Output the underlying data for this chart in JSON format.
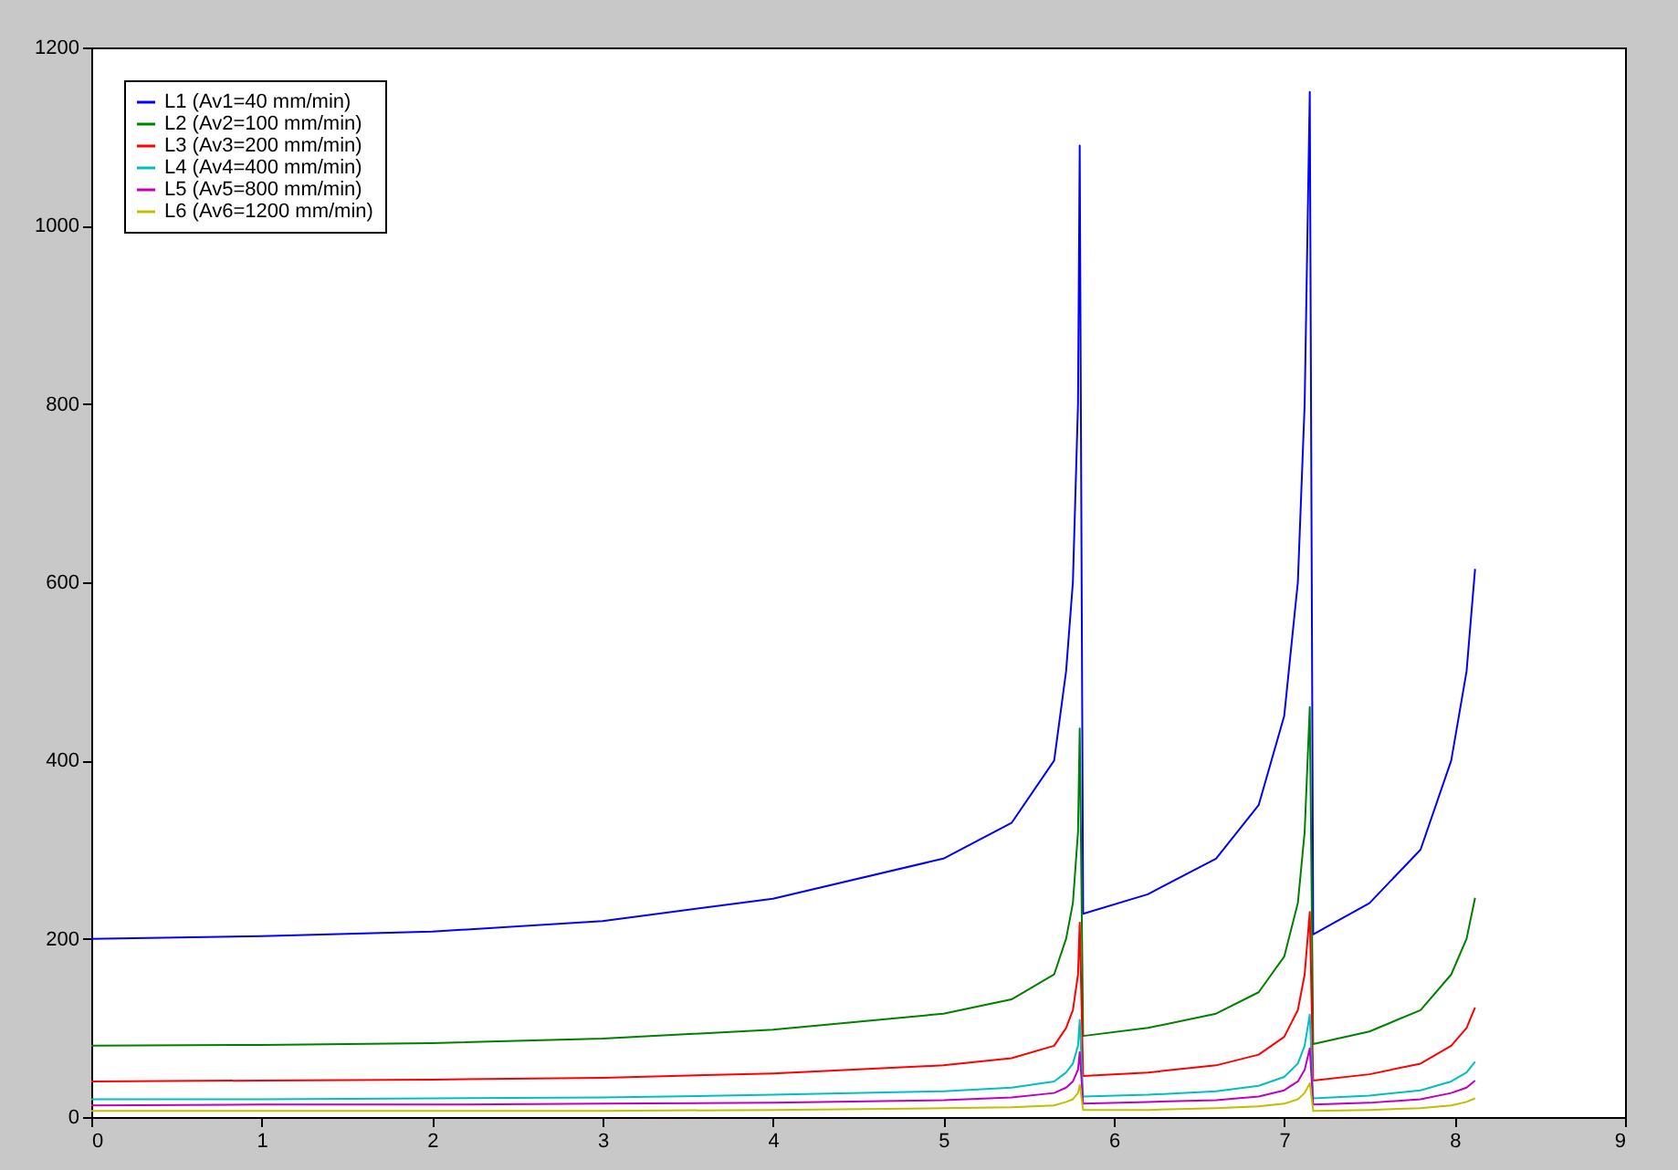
{
  "chart_data": {
    "type": "line",
    "x": [
      0,
      1,
      2,
      3,
      4,
      5,
      5.4,
      5.65,
      5.72,
      5.76,
      5.79,
      5.8,
      5.82,
      6.2,
      6.6,
      6.85,
      7.0,
      7.08,
      7.12,
      7.15,
      7.17,
      7.5,
      7.8,
      7.98,
      8.07,
      8.12
    ],
    "series": [
      {
        "name": "L1 (Av1=40 mm/min)",
        "color": "#0000ff",
        "values": [
          200,
          203,
          208,
          220,
          245,
          290,
          330,
          400,
          500,
          600,
          800,
          1090,
          228,
          250,
          290,
          350,
          450,
          600,
          800,
          1150,
          205,
          240,
          300,
          400,
          500,
          615
        ]
      },
      {
        "name": "L2 (Av2=100 mm/min)",
        "color": "#008000",
        "values": [
          80,
          81,
          83,
          88,
          98,
          116,
          132,
          160,
          200,
          240,
          320,
          436,
          91,
          100,
          116,
          140,
          180,
          240,
          320,
          460,
          82,
          96,
          120,
          160,
          200,
          246
        ]
      },
      {
        "name": "L3 (Av3=200 mm/min)",
        "color": "#ff0000",
        "values": [
          40,
          41,
          42,
          44,
          49,
          58,
          66,
          80,
          100,
          120,
          160,
          218,
          46,
          50,
          58,
          70,
          90,
          120,
          160,
          230,
          41,
          48,
          60,
          80,
          100,
          123
        ]
      },
      {
        "name": "L4 (Av4=400 mm/min)",
        "color": "#00bfbf",
        "values": [
          20,
          20,
          21,
          22,
          25,
          29,
          33,
          40,
          50,
          60,
          80,
          109,
          23,
          25,
          29,
          35,
          45,
          60,
          80,
          115,
          21,
          24,
          30,
          40,
          50,
          62
        ]
      },
      {
        "name": "L5 (Av5=800 mm/min)",
        "color": "#bf00bf",
        "values": [
          13,
          14,
          14,
          15,
          16,
          19,
          22,
          27,
          33,
          40,
          53,
          73,
          15,
          17,
          19,
          23,
          30,
          40,
          53,
          77,
          14,
          16,
          20,
          27,
          33,
          41
        ]
      },
      {
        "name": "L6 (Av6=1200 mm/min)",
        "color": "#bfbf00",
        "values": [
          7,
          7,
          7,
          7,
          8,
          10,
          11,
          13,
          17,
          20,
          27,
          36,
          8,
          8,
          10,
          12,
          15,
          20,
          27,
          38,
          7,
          8,
          10,
          13,
          17,
          21
        ]
      }
    ],
    "xlim": [
      0,
      9
    ],
    "xticks": [
      0,
      1,
      2,
      3,
      4,
      5,
      6,
      7,
      8,
      9
    ],
    "ylim": [
      0,
      1200
    ],
    "yticks": [
      0,
      200,
      400,
      600,
      800,
      1000,
      1200
    ],
    "grid": false,
    "legend": "top left"
  }
}
